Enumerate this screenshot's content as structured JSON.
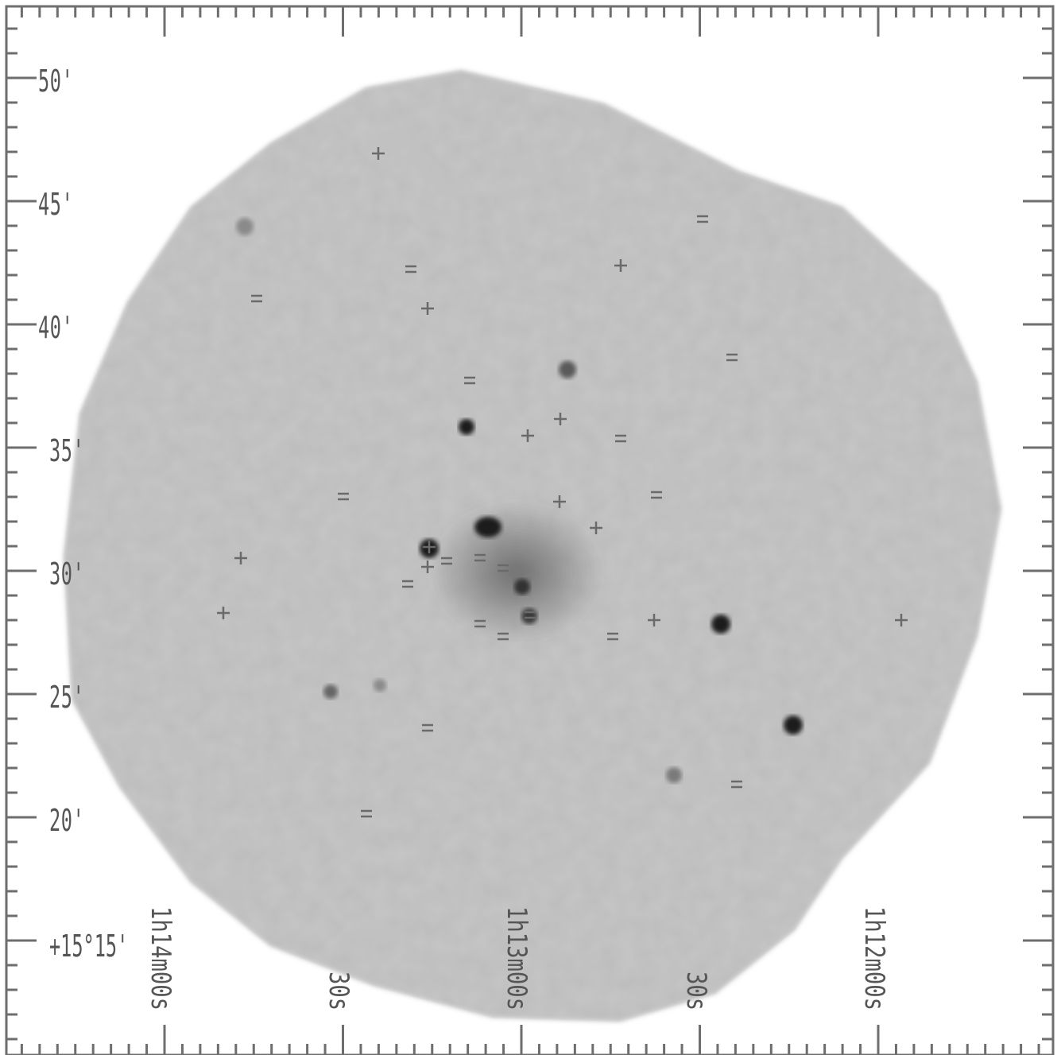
{
  "axes": {
    "dec_ticks": [
      {
        "label": "50'",
        "row": 98
      },
      {
        "label": "45'",
        "row": 253
      },
      {
        "label": "40'",
        "row": 408
      },
      {
        "label": "35'",
        "row": 563
      },
      {
        "label": "30'",
        "row": 718
      },
      {
        "label": "25'",
        "row": 873
      },
      {
        "label": "20'",
        "row": 1028
      }
    ],
    "dec_origin": "+15°15'",
    "ra_ticks": [
      {
        "label": "1h14m00s"
      },
      {
        "label": "30s"
      },
      {
        "label": "1h13m00s"
      },
      {
        "label": "30s"
      },
      {
        "label": "1h12m00s"
      }
    ]
  },
  "image": {
    "description_colors": {
      "background": "#ffffff",
      "field": "#b4b4b4",
      "frame": "#6e6e6e",
      "source": "#1a1a1a"
    }
  }
}
